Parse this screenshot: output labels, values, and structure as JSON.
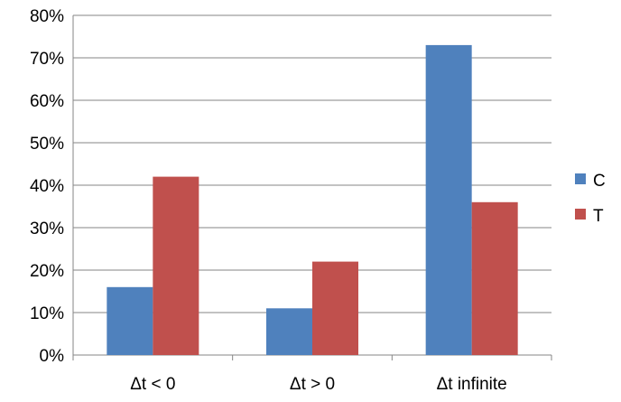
{
  "chart_data": {
    "type": "bar",
    "categories": [
      "Δt < 0",
      "Δt > 0",
      "Δt infinite"
    ],
    "series": [
      {
        "name": "C",
        "values": [
          16,
          11,
          73
        ],
        "color": "#4F81BD"
      },
      {
        "name": "T",
        "values": [
          42,
          22,
          36
        ],
        "color": "#C0504D"
      }
    ],
    "ylim": [
      0,
      80
    ],
    "y_ticks": [
      0,
      10,
      20,
      30,
      40,
      50,
      60,
      70,
      80
    ],
    "y_tick_labels": [
      "0%",
      "10%",
      "20%",
      "30%",
      "40%",
      "50%",
      "60%",
      "70%",
      "80%"
    ],
    "grid": true,
    "legend": "right",
    "title": "",
    "xlabel": "",
    "ylabel": ""
  }
}
